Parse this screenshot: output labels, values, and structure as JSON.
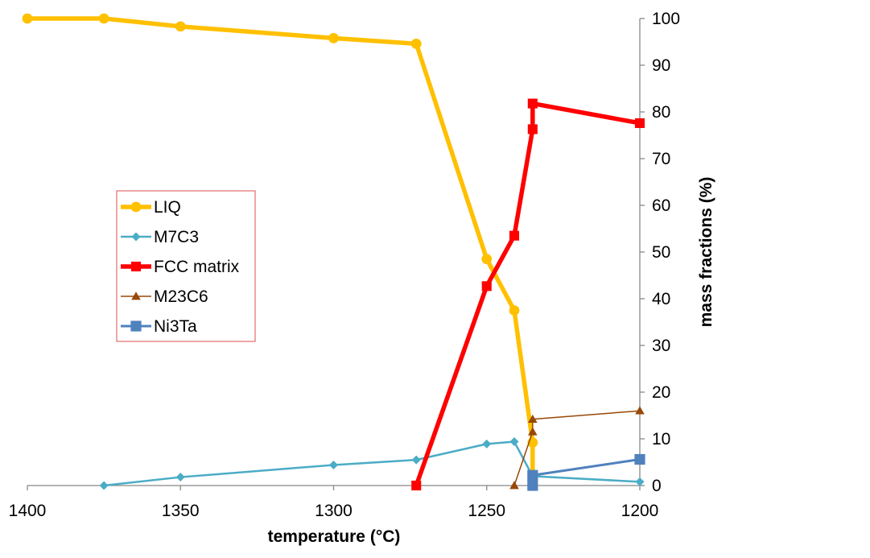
{
  "chart_data": {
    "type": "line",
    "xlabel": "temperature (°C)",
    "ylabel": "mass fractions (%)",
    "xlim": [
      1400,
      1200
    ],
    "ylim": [
      0,
      100
    ],
    "x_ticks": [
      "1400",
      "1350",
      "1300",
      "1250",
      "1200"
    ],
    "y_ticks": [
      "0",
      "10",
      "20",
      "30",
      "40",
      "50",
      "60",
      "70",
      "80",
      "90",
      "100"
    ],
    "y_axis_position": "right",
    "grid": false,
    "legend_position": "left-center",
    "series": [
      {
        "name": "LIQ",
        "color": "#FFC000",
        "marker": "circle",
        "points": [
          [
            1400,
            100
          ],
          [
            1375,
            100
          ],
          [
            1350,
            98.3
          ],
          [
            1300,
            95.8
          ],
          [
            1273,
            94.6
          ],
          [
            1250,
            48.5
          ],
          [
            1241,
            37.5
          ],
          [
            1235,
            9.2
          ],
          [
            1235,
            0
          ]
        ]
      },
      {
        "name": "M7C3",
        "color": "#4BACC6",
        "marker": "diamond",
        "points": [
          [
            1375,
            0
          ],
          [
            1350,
            1.8
          ],
          [
            1300,
            4.4
          ],
          [
            1273,
            5.5
          ],
          [
            1250,
            8.9
          ],
          [
            1241,
            9.4
          ],
          [
            1235,
            2.0
          ],
          [
            1200,
            0.8
          ]
        ]
      },
      {
        "name": "FCC matrix",
        "color": "#FF0000",
        "marker": "square",
        "points": [
          [
            1273,
            0
          ],
          [
            1250,
            42.7
          ],
          [
            1241,
            53.5
          ],
          [
            1235,
            76.3
          ],
          [
            1235,
            81.8
          ],
          [
            1200,
            77.6
          ]
        ]
      },
      {
        "name": "M23C6",
        "color": "#984807",
        "marker": "triangle",
        "points": [
          [
            1241,
            0
          ],
          [
            1235,
            11.5
          ],
          [
            1235,
            14.2
          ],
          [
            1200,
            16.0
          ]
        ]
      },
      {
        "name": "Ni3Ta",
        "color": "#4F81BD",
        "marker": "square",
        "points": [
          [
            1235,
            0
          ],
          [
            1235,
            2.2
          ],
          [
            1200,
            5.6
          ]
        ]
      }
    ]
  }
}
